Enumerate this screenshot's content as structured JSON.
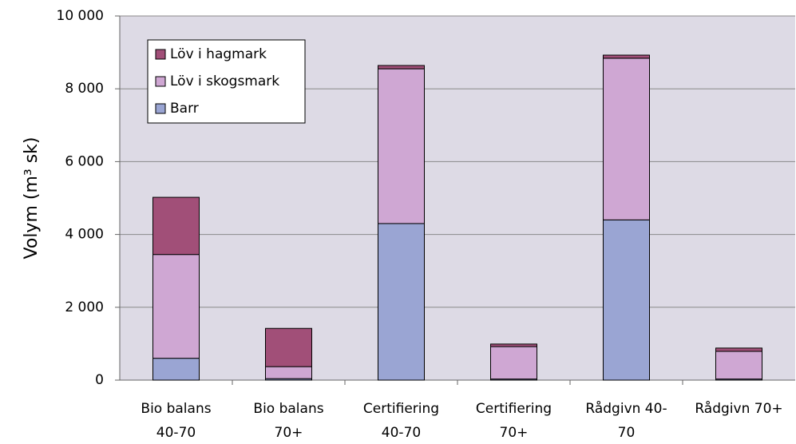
{
  "chart_data": {
    "type": "stacked_bar",
    "ylabel": "Volym (m³ sk)",
    "categories": [
      [
        "Bio balans",
        "40-70"
      ],
      [
        "Bio balans",
        "70+"
      ],
      [
        "Certifiering",
        "40-70"
      ],
      [
        "Certifiering",
        "70+"
      ],
      [
        "Rådgivn 40-",
        "70"
      ],
      [
        "Rådgivn 70+"
      ]
    ],
    "series": [
      {
        "name": "Barr",
        "color": "#9aa5d3",
        "values": [
          600,
          40,
          4300,
          30,
          4400,
          30
        ]
      },
      {
        "name": "Löv i skogsmark",
        "color": "#cfa7d3",
        "values": [
          2850,
          330,
          4250,
          890,
          4440,
          760
        ]
      },
      {
        "name": "Löv i hagmark",
        "color": "#a14f78",
        "values": [
          1570,
          1050,
          90,
          70,
          85,
          90
        ]
      }
    ],
    "ylim": [
      0,
      10000
    ],
    "yticks": [
      0,
      {
        "value": 2000,
        "label": "2 000"
      },
      {
        "value": 4000,
        "label": "4 000"
      },
      {
        "value": 6000,
        "label": "6 000"
      },
      {
        "value": 8000,
        "label": "8 000"
      },
      {
        "value": 10000,
        "label": "10 000"
      }
    ],
    "grid": true,
    "legend": "top-left"
  }
}
